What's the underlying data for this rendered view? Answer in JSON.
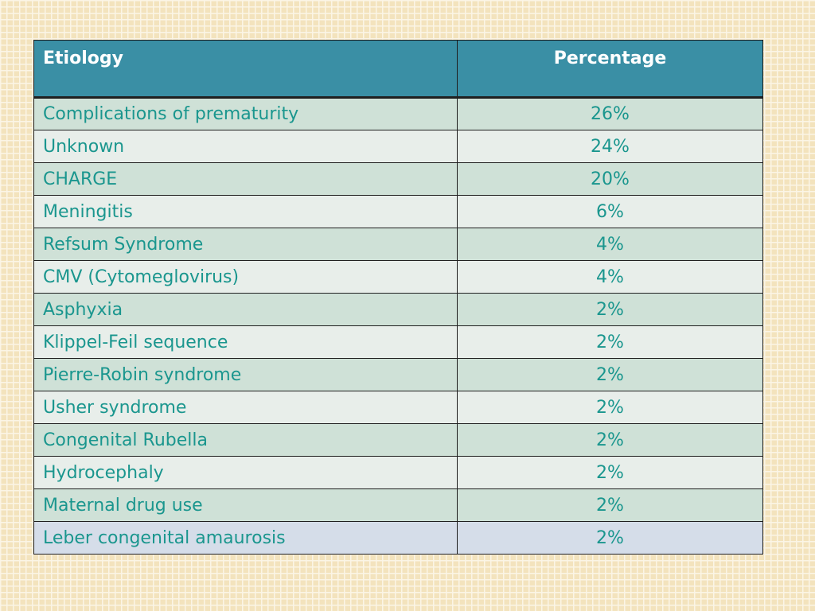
{
  "table": {
    "headers": [
      "Etiology",
      "Percentage"
    ],
    "rows": [
      {
        "etiology": "Complications of prematurity",
        "percentage": "26%"
      },
      {
        "etiology": "Unknown",
        "percentage": "24%"
      },
      {
        "etiology": "CHARGE",
        "percentage": "20%"
      },
      {
        "etiology": "Meningitis",
        "percentage": "6%"
      },
      {
        "etiology": "Refsum Syndrome",
        "percentage": "4%"
      },
      {
        "etiology": "CMV (Cytomeglovirus)",
        "percentage": "4%"
      },
      {
        "etiology": "Asphyxia",
        "percentage": "2%"
      },
      {
        "etiology": "Klippel-Feil sequence",
        "percentage": "2%"
      },
      {
        "etiology": "Pierre-Robin syndrome",
        "percentage": "2%"
      },
      {
        "etiology": "Usher syndrome",
        "percentage": "2%"
      },
      {
        "etiology": "Congenital Rubella",
        "percentage": "2%"
      },
      {
        "etiology": "Hydrocephaly",
        "percentage": "2%"
      },
      {
        "etiology": "Maternal drug use",
        "percentage": "2%"
      },
      {
        "etiology": "Leber congenital amaurosis",
        "percentage": "2%"
      }
    ]
  },
  "colors": {
    "header_bg": "#3a8fa5",
    "text": "#1a968e",
    "row_odd": "#cfe1d7",
    "row_even": "#e8eeea",
    "row_last": "#d5dde9",
    "background": "#f3e3bd"
  }
}
